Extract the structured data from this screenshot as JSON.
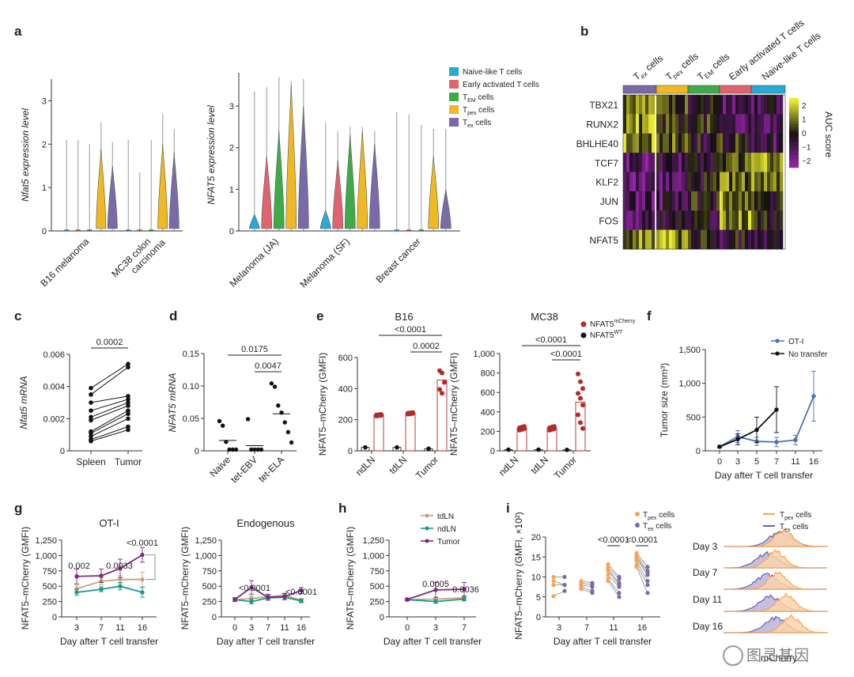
{
  "colors": {
    "naive": "#29a9d6",
    "early": "#e06470",
    "tem": "#3fab48",
    "tpex": "#f0b822",
    "tex": "#7b6aa8",
    "nfat_mcherry": "#b22a2a",
    "nfat_wt": "#111111",
    "otI": "#4a71b8",
    "notransfer": "#111111",
    "tdln": "#c9a27a",
    "ndln": "#1a9a8a",
    "tumor": "#7b2a7f",
    "tpex_hist": "#f5a55a",
    "tex_hist": "#6a60a8"
  },
  "panel_labels": [
    "a",
    "b",
    "c",
    "d",
    "e",
    "f",
    "g",
    "h",
    "i"
  ],
  "a": {
    "legend": [
      {
        "name": "Naive-like T cells",
        "color": "#29a9d6"
      },
      {
        "name": "Early activated T cells",
        "color": "#e06470"
      },
      {
        "name": "T_EM cells",
        "color": "#3fab48"
      },
      {
        "name": "T_pex cells",
        "color": "#f0b822"
      },
      {
        "name": "T_ex cells",
        "color": "#7b6aa8"
      }
    ]
  },
  "chart_data": [
    {
      "panel": "a-left",
      "type": "violin",
      "ylabel": "Nfat5 expression level",
      "ylim": [
        0,
        3.5
      ],
      "yticks": [
        0,
        1,
        2,
        3
      ],
      "categories": [
        "B16 melanoma",
        "MC38 colon carcinoma"
      ],
      "cell_types": [
        "Naive-like T cells",
        "Early activated T cells",
        "T_EM cells",
        "T_pex cells",
        "T_ex cells"
      ],
      "max_values": [
        [
          2.1,
          2.1,
          2.0,
          2.5,
          2.05
        ],
        [
          2.1,
          1.35,
          2.1,
          2.7,
          2.35
        ]
      ],
      "main_body_top": [
        [
          0,
          0,
          0,
          1.9,
          1.5
        ],
        [
          0,
          0,
          0,
          2.0,
          1.8
        ]
      ]
    },
    {
      "panel": "a-right",
      "type": "violin",
      "ylabel": "NFAT5 expression level",
      "ylim": [
        0,
        3.8
      ],
      "yticks": [
        0,
        1,
        2,
        3
      ],
      "categories": [
        "Melanoma (JA)",
        "Melanoma (SF)",
        "Breast cancer"
      ],
      "cell_types": [
        "Naive-like T cells",
        "Early activated T cells",
        "T_EM cells",
        "T_pex cells",
        "T_ex cells"
      ],
      "max_values": [
        [
          3.35,
          3.45,
          3.7,
          3.6,
          3.65
        ],
        [
          2.6,
          2.4,
          2.5,
          2.5,
          2.4
        ],
        [
          2.85,
          2.8,
          2.55,
          2.45,
          2.45
        ]
      ],
      "main_body_top": [
        [
          0.4,
          1.8,
          2.4,
          3.5,
          3.0
        ],
        [
          0.5,
          1.7,
          2.3,
          2.4,
          2.1
        ],
        [
          0,
          0,
          0,
          1.8,
          1.0
        ]
      ]
    },
    {
      "panel": "b",
      "type": "heatmap",
      "rows": [
        "TBX21",
        "RUNX2",
        "BHLHE40",
        "TCF7",
        "KLF2",
        "JUN",
        "FOS",
        "NFAT5"
      ],
      "columns": [
        "T_ex cells",
        "T_pex cells",
        "T_EM cells",
        "Early activated T cells",
        "Naive-like T cells"
      ],
      "colorbar_label": "AUC score",
      "colorbar_range": [
        -2.5,
        2.5
      ],
      "colorbar_ticks": [
        2,
        1,
        0,
        -1,
        -2
      ]
    },
    {
      "panel": "c",
      "type": "paired-dot",
      "ylabel": "Nfat5 mRNA",
      "ylim": [
        0,
        0.006
      ],
      "yticks": [
        "0",
        "0.002",
        "0.004",
        "0.006"
      ],
      "categories": [
        "Spleen",
        "Tumor"
      ],
      "pairs": [
        [
          0.0039,
          0.0054
        ],
        [
          0.0035,
          0.0052
        ],
        [
          0.003,
          0.0034
        ],
        [
          0.0025,
          0.0032
        ],
        [
          0.0021,
          0.003
        ],
        [
          0.0019,
          0.0028
        ],
        [
          0.0012,
          0.0025
        ],
        [
          0.0011,
          0.0023
        ],
        [
          0.0009,
          0.002
        ],
        [
          0.0007,
          0.0015
        ],
        [
          0.0006,
          0.0013
        ]
      ],
      "annotations": [
        "0.0002"
      ]
    },
    {
      "panel": "d",
      "type": "dot",
      "ylabel": "NFAT5 mRNA",
      "ylim": [
        0,
        0.15
      ],
      "yticks": [
        "0",
        "0.05",
        "0.10",
        "0.15"
      ],
      "categories": [
        "Naive",
        "tet-EBV",
        "tet-ELA"
      ],
      "points": [
        [
          0.044,
          0.037,
          0.012,
          0.0,
          0.0,
          0.0
        ],
        [
          0.047,
          0.0,
          0.0,
          0.0,
          0.0
        ],
        [
          0.102,
          0.097,
          0.068,
          0.057,
          0.042,
          0.027,
          0.011
        ]
      ],
      "means": [
        0.016,
        0.008,
        0.057
      ],
      "annotations": [
        "0.0175",
        "0.0047"
      ]
    },
    {
      "panel": "e-B16",
      "type": "bar-dot",
      "title": "B16",
      "ylabel": "NFAT5–mCherry (GMFI)",
      "ylim": [
        0,
        600
      ],
      "yticks": [
        "0",
        "200",
        "400",
        "600"
      ],
      "categories": [
        "ndLN",
        "tdLN",
        "Tumor"
      ],
      "wt_values": [
        22,
        22,
        14
      ],
      "mcherry_values": [
        230,
        240,
        455
      ],
      "mcherry_points": [
        [
          224,
          226,
          228,
          230,
          232,
          234
        ],
        [
          236,
          238,
          240,
          242,
          244,
          246
        ],
        [
          515,
          500,
          440,
          395,
          370
        ]
      ],
      "annotations": [
        "<0.0001",
        "0.0002"
      ]
    },
    {
      "panel": "e-MC38",
      "type": "bar-dot",
      "title": "MC38",
      "ylabel": "NFAT5–mCherry (GMFI)",
      "ylim": [
        0,
        1000
      ],
      "yticks": [
        "0",
        "200",
        "400",
        "600",
        "800",
        "1,000"
      ],
      "categories": [
        "ndLN",
        "tdLN",
        "Tumor"
      ],
      "wt_values": [
        12,
        12,
        10
      ],
      "mcherry_values": [
        230,
        230,
        500
      ],
      "mcherry_points": [
        [
          212,
          220,
          228,
          236,
          244,
          250
        ],
        [
          212,
          220,
          228,
          236,
          244,
          250
        ],
        [
          790,
          710,
          640,
          590,
          540,
          470,
          370,
          290,
          230
        ]
      ],
      "annotations": [
        "<0.0001",
        "<0.0001"
      ],
      "legend": [
        "NFAT5^mCherry",
        "NFAT5^WT"
      ]
    },
    {
      "panel": "f",
      "type": "line",
      "ylabel": "Tumor size (mm³)",
      "xlabel": "Day after T cell transfer",
      "ylim": [
        0,
        1500
      ],
      "yticks": [
        "0",
        "500",
        "1,000",
        "1,500"
      ],
      "x": [
        0,
        3,
        5,
        7,
        11,
        16
      ],
      "series": [
        {
          "name": "OT-I",
          "color": "#4a71b8",
          "values": [
            60,
            210,
            140,
            130,
            160,
            810
          ],
          "errors": [
            15,
            90,
            60,
            70,
            70,
            370
          ]
        },
        {
          "name": "No transfer",
          "color": "#111111",
          "values": [
            60,
            170,
            310,
            610,
            null,
            null
          ],
          "errors": [
            15,
            80,
            190,
            340,
            null,
            null
          ]
        }
      ]
    },
    {
      "panel": "g-OT-I",
      "type": "line",
      "title": "OT-I",
      "ylabel": "NFAT5–mCherry (GMFI)",
      "xlabel": "Day after T cell transfer",
      "ylim": [
        0,
        1250
      ],
      "yticks": [
        "0",
        "250",
        "500",
        "750",
        "1,000",
        "1,250"
      ],
      "x": [
        3,
        7,
        11,
        16
      ],
      "series": [
        {
          "name": "tdLN",
          "color": "#c9a27a",
          "values": [
            460,
            580,
            610,
            610
          ],
          "errors": [
            60,
            60,
            60,
            120
          ]
        },
        {
          "name": "ndLN",
          "color": "#1a9a8a",
          "values": [
            400,
            450,
            500,
            400
          ],
          "errors": [
            50,
            40,
            60,
            80
          ]
        },
        {
          "name": "Tumor",
          "color": "#7b2a7f",
          "values": [
            660,
            670,
            790,
            1010
          ],
          "errors": [
            120,
            110,
            150,
            120
          ]
        }
      ],
      "annotations": [
        "0.002",
        "0.0033",
        "<0.0001"
      ]
    },
    {
      "panel": "g-Endogenous",
      "type": "line",
      "title": "Endogenous",
      "ylabel": "NFAT5–mCherry (GMFI)",
      "xlabel": "Day after T cell transfer",
      "ylim": [
        0,
        1250
      ],
      "yticks": [
        "0",
        "250",
        "500",
        "750",
        "1,000",
        "1,250"
      ],
      "x": [
        0,
        3,
        7,
        11,
        16
      ],
      "series": [
        {
          "name": "tdLN",
          "color": "#c9a27a",
          "values": [
            280,
            300,
            330,
            350,
            270
          ],
          "errors": [
            30,
            40,
            40,
            40,
            30
          ]
        },
        {
          "name": "ndLN",
          "color": "#1a9a8a",
          "values": [
            280,
            250,
            310,
            320,
            260
          ],
          "errors": [
            30,
            40,
            40,
            40,
            30
          ]
        },
        {
          "name": "Tumor",
          "color": "#7b2a7f",
          "values": [
            285,
            480,
            320,
            330,
            430
          ],
          "errors": [
            30,
            110,
            50,
            50,
            50
          ]
        }
      ],
      "annotations": [
        "<0.0001",
        "<0.0001"
      ]
    },
    {
      "panel": "h",
      "type": "line",
      "ylabel": "NFAT5–mCherry (GMFI)",
      "xlabel": "Day after T cell transfer",
      "ylim": [
        0,
        1250
      ],
      "yticks": [
        "0",
        "250",
        "500",
        "750",
        "1,000",
        "1,250"
      ],
      "x": [
        0,
        3,
        7
      ],
      "series": [
        {
          "name": "tdLN",
          "color": "#c9a27a",
          "values": [
            280,
            290,
            310
          ],
          "errors": [
            20,
            30,
            30
          ]
        },
        {
          "name": "ndLN",
          "color": "#1a9a8a",
          "values": [
            280,
            250,
            290
          ],
          "errors": [
            20,
            30,
            30
          ]
        },
        {
          "name": "Tumor",
          "color": "#7b2a7f",
          "values": [
            285,
            440,
            450
          ],
          "errors": [
            20,
            120,
            110
          ]
        }
      ],
      "annotations": [
        "0.0005",
        "0.0036"
      ]
    },
    {
      "panel": "i-left",
      "type": "paired-dot",
      "ylabel": "NFAT5–mCherry (GMFI, ×10²)",
      "xlabel": "Day after T cell transfer",
      "ylim": [
        0,
        20
      ],
      "yticks": [
        "0",
        "5",
        "10",
        "15",
        "20"
      ],
      "categories": [
        "3",
        "7",
        "11",
        "16"
      ],
      "series": [
        "T_pex cells",
        "T_ex cells"
      ],
      "pairs": [
        [
          [
            10,
            10
          ],
          [
            9,
            8
          ],
          [
            8,
            8
          ],
          [
            5.2,
            6.5
          ]
        ],
        [
          [
            9,
            8.5
          ],
          [
            8.5,
            8
          ],
          [
            8,
            7.5
          ],
          [
            7.5,
            6.5
          ],
          [
            7,
            6
          ]
        ],
        [
          [
            13.2,
            10
          ],
          [
            12.5,
            9.5
          ],
          [
            12,
            8.5
          ],
          [
            11.5,
            8
          ],
          [
            10.5,
            7.5
          ],
          [
            9.5,
            6
          ],
          [
            9,
            5
          ]
        ],
        [
          [
            16,
            12.5
          ],
          [
            15.5,
            11.5
          ],
          [
            15,
            11
          ],
          [
            14.5,
            10.5
          ],
          [
            14,
            9
          ],
          [
            13,
            8
          ],
          [
            12.5,
            6
          ]
        ]
      ],
      "annotations": [
        "<0.0001",
        "<0.0001"
      ]
    },
    {
      "panel": "i-right",
      "type": "histogram",
      "series": [
        "T_pex cells",
        "T_ex cells"
      ],
      "rows": [
        "Day 3",
        "Day 7",
        "Day 11",
        "Day 16"
      ],
      "xlabel": "mCherry"
    }
  ],
  "legends": {
    "e": [
      "NFAT5",
      "mCherry",
      "NFAT5",
      "WT"
    ],
    "f": [
      "OT-I",
      "No transfer"
    ],
    "h": [
      "tdLN",
      "ndLN",
      "Tumor"
    ],
    "i": [
      "pex",
      "ex",
      "cells"
    ]
  },
  "watermark": {
    "text": "图灵基因"
  }
}
